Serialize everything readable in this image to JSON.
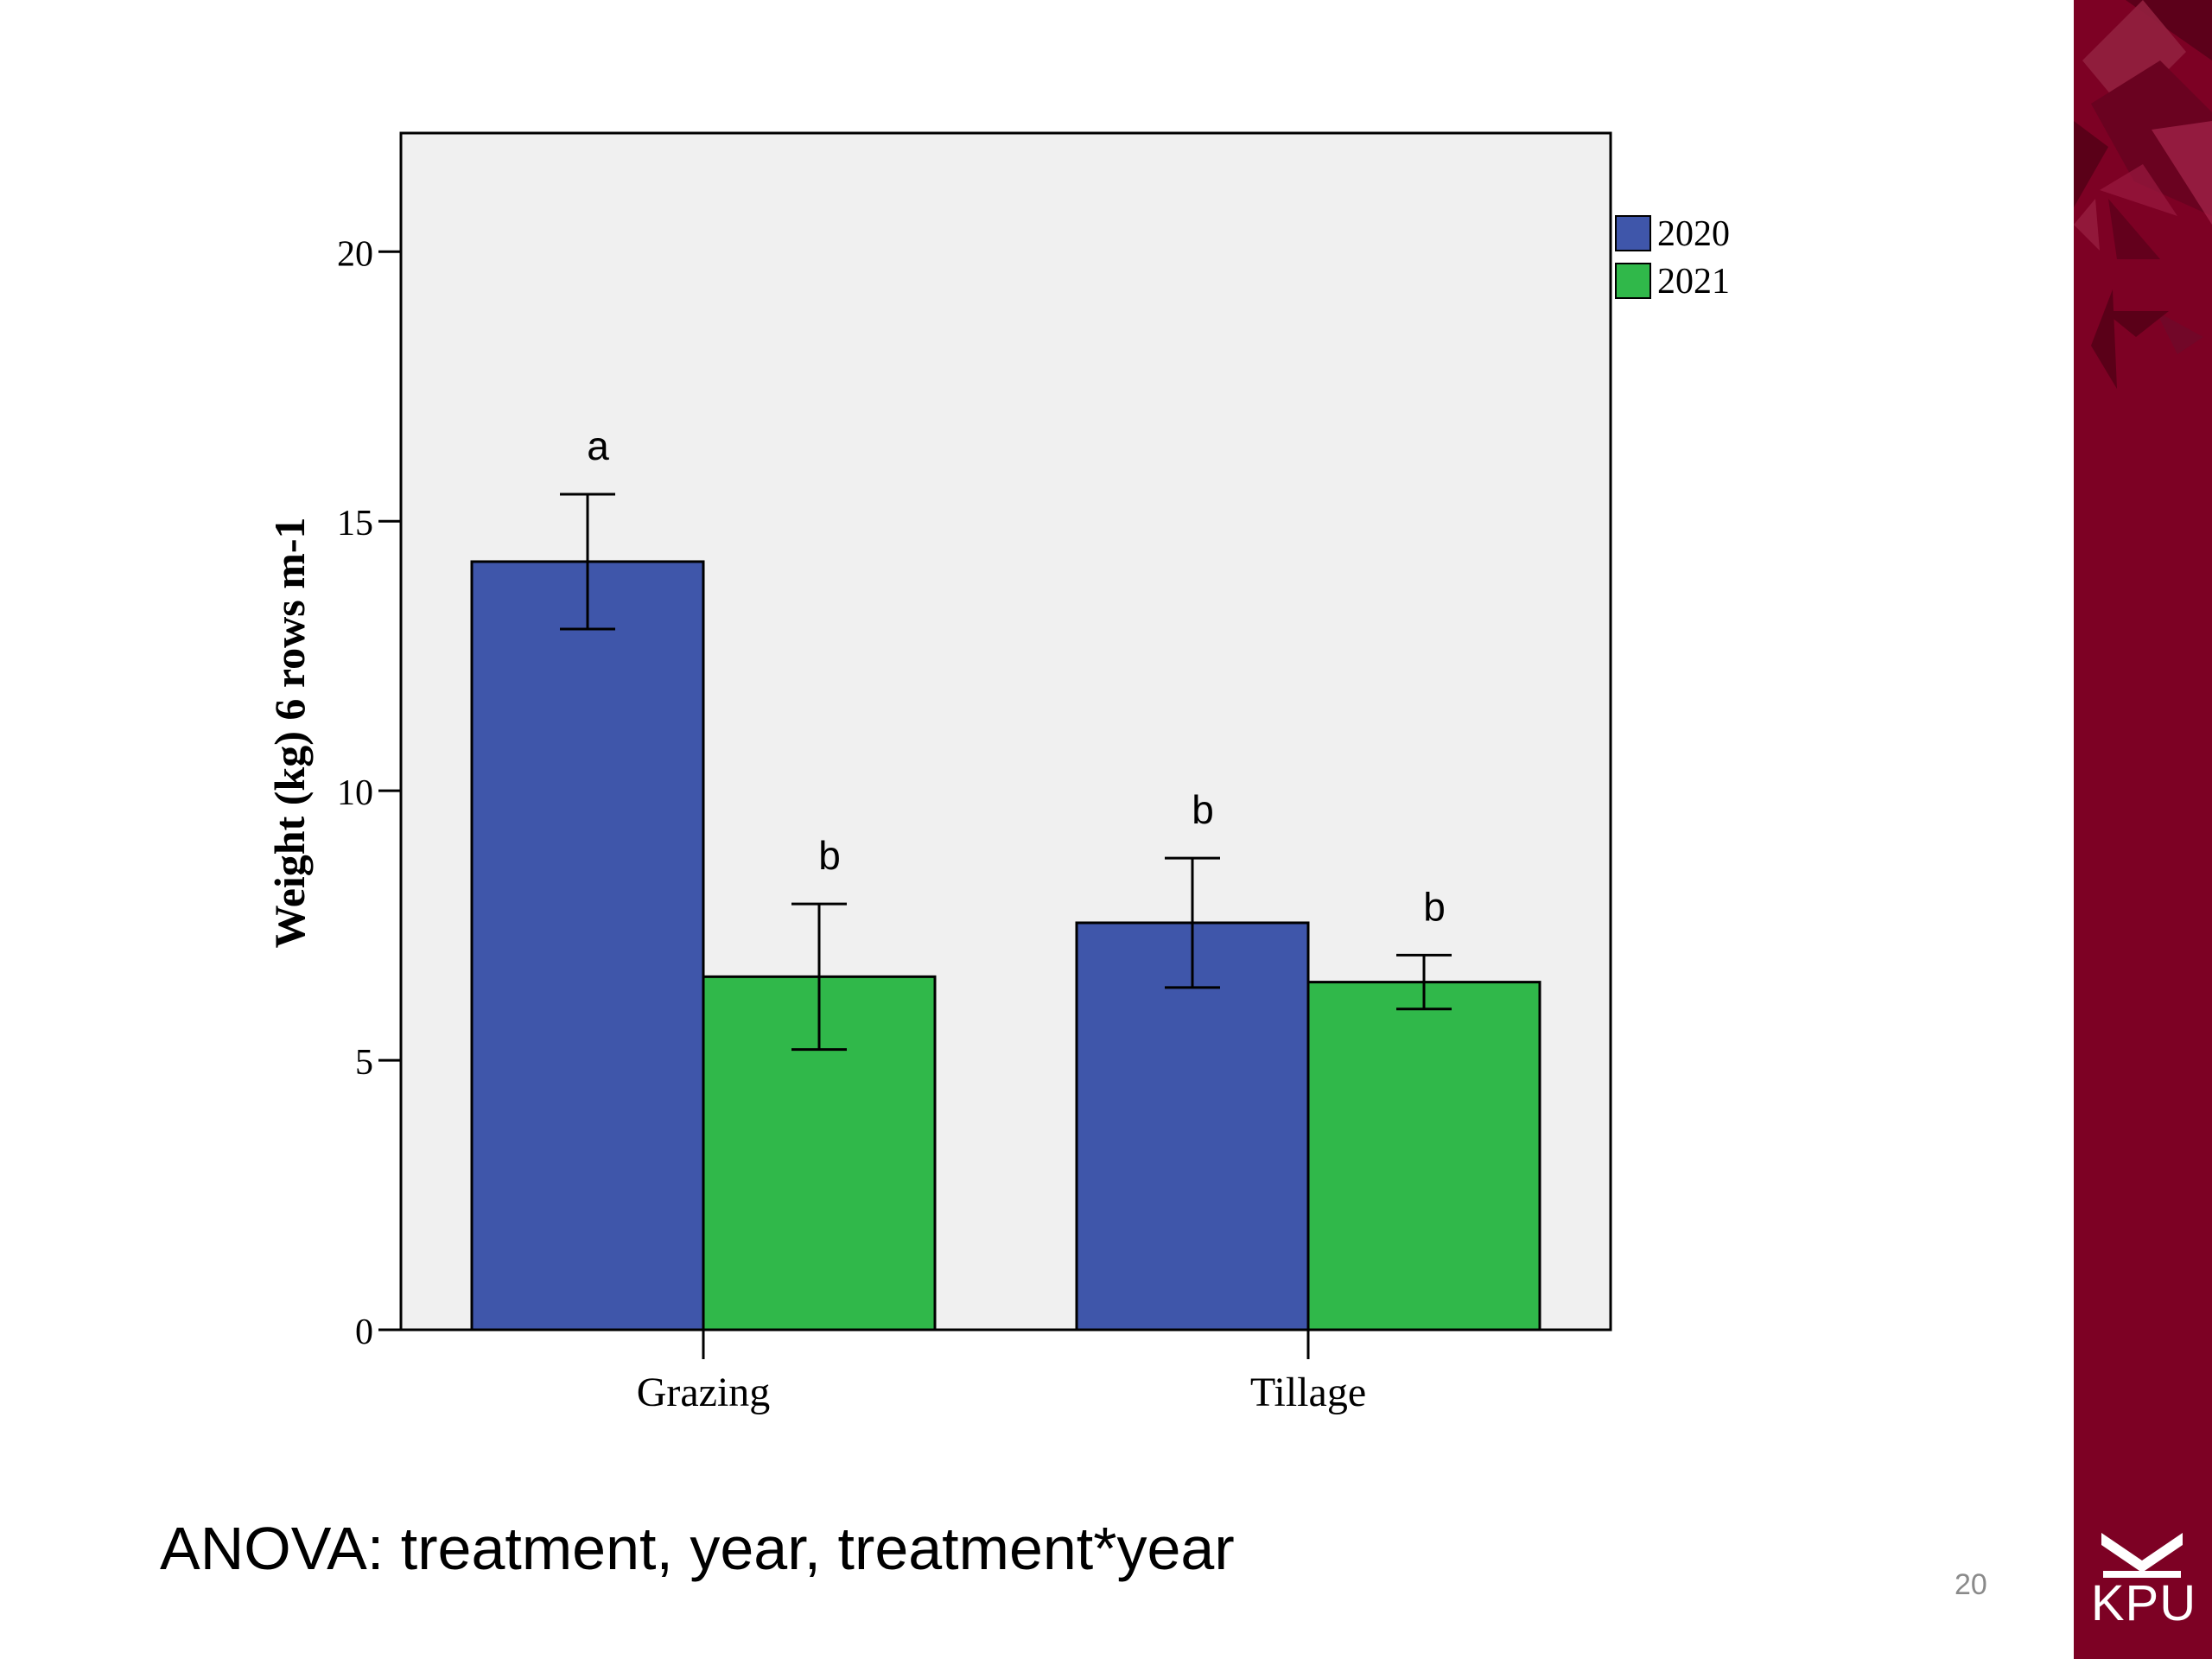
{
  "chart_data": {
    "type": "bar",
    "title": "",
    "xlabel": "",
    "ylabel": "Weight (kg) 6 rows m-1",
    "categories": [
      "Grazing",
      "Tillage"
    ],
    "ylim": [
      0,
      22.2
    ],
    "yticks": [
      0,
      5,
      10,
      15,
      20
    ],
    "grid": false,
    "legend_position": "top-right",
    "series": [
      {
        "name": "2020",
        "color": "#3f56aa",
        "values": [
          14.25,
          7.55
        ],
        "error_low": [
          13.0,
          6.35
        ],
        "error_high": [
          15.5,
          8.75
        ],
        "letters": [
          "a",
          "b"
        ]
      },
      {
        "name": "2021",
        "color": "#30b84a",
        "values": [
          6.55,
          6.45
        ],
        "error_low": [
          5.2,
          5.95
        ],
        "error_high": [
          7.9,
          6.95
        ],
        "letters": [
          "b",
          "b"
        ]
      }
    ]
  },
  "caption": "ANOVA: treatment, year, treatment*year",
  "page_number": "20",
  "logo": {
    "text": "KPU",
    "icon": "kpu-chevron-logo-icon"
  },
  "colors": {
    "plot_background": "#f0f0f0",
    "side_band": "#7d0124"
  }
}
